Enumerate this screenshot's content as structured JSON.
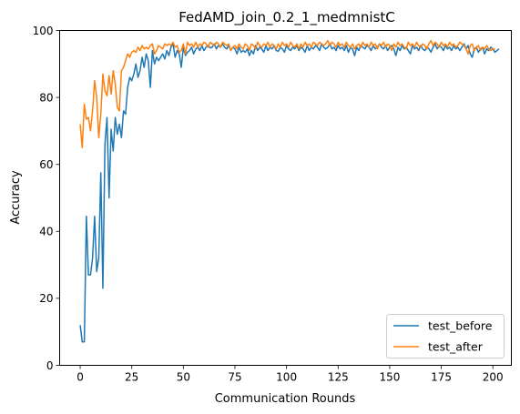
{
  "chart_data": {
    "type": "line",
    "title": "FedAMD_join_0.2_1_medmnistC",
    "xlabel": "Communication Rounds",
    "ylabel": "Accuracy",
    "xlim": [
      -9.95,
      208.95
    ],
    "ylim": [
      0,
      100
    ],
    "xticks": [
      "0",
      "25",
      "50",
      "75",
      "100",
      "125",
      "150",
      "175",
      "200"
    ],
    "yticks": [
      "0",
      "20",
      "40",
      "60",
      "80",
      "100"
    ],
    "legend": {
      "position": "lower-right"
    },
    "grid": false,
    "series": [
      {
        "name": "test_before",
        "color": "#1f77b4",
        "values": [
          12.0,
          7.0,
          7.0,
          44.5,
          27.0,
          27.0,
          32.0,
          44.5,
          28.0,
          32.0,
          57.5,
          23.0,
          66.0,
          74.0,
          50.0,
          70.5,
          64.0,
          74.0,
          69.0,
          72.0,
          68.0,
          76.0,
          75.0,
          83.0,
          86.0,
          85.0,
          87.0,
          90.0,
          86.0,
          88.0,
          92.0,
          89.0,
          93.0,
          91.0,
          83.0,
          94.0,
          90.0,
          92.0,
          91.0,
          92.0,
          93.0,
          91.5,
          94.0,
          92.5,
          95.0,
          96.0,
          92.0,
          94.0,
          93.0,
          89.0,
          95.0,
          92.5,
          93.5,
          94.0,
          95.0,
          93.0,
          94.5,
          95.0,
          94.0,
          95.5,
          94.0,
          95.0,
          95.5,
          94.8,
          95.0,
          96.0,
          94.5,
          95.5,
          95.0,
          96.0,
          95.0,
          94.5,
          95.5,
          94.0,
          95.0,
          94.5,
          93.0,
          95.0,
          93.5,
          94.0,
          93.5,
          94.5,
          92.5,
          94.0,
          93.0,
          95.5,
          94.0,
          95.0,
          94.5,
          93.5,
          95.5,
          94.0,
          95.0,
          94.5,
          95.5,
          94.0,
          93.8,
          95.0,
          94.5,
          93.5,
          95.5,
          94.5,
          94.0,
          95.0,
          94.5,
          95.5,
          94.0,
          95.0,
          94.5,
          93.5,
          95.5,
          94.0,
          95.0,
          94.5,
          95.5,
          95.0,
          94.0,
          96.0,
          95.0,
          94.5,
          95.0,
          96.0,
          94.5,
          95.0,
          94.0,
          95.5,
          94.5,
          95.0,
          94.0,
          95.5,
          93.5,
          95.0,
          94.5,
          92.5,
          95.0,
          94.0,
          95.5,
          95.0,
          94.5,
          95.5,
          95.0,
          94.0,
          95.5,
          94.5,
          95.0,
          96.0,
          95.0,
          94.5,
          95.5,
          94.0,
          95.0,
          95.5,
          94.5,
          92.5,
          95.0,
          94.0,
          95.5,
          94.5,
          95.0,
          94.0,
          93.0,
          95.5,
          94.5,
          95.0,
          94.0,
          95.5,
          94.5,
          94.0,
          95.0,
          94.5,
          93.5,
          95.0,
          96.0,
          94.5,
          95.5,
          95.0,
          94.0,
          95.5,
          94.5,
          95.0,
          94.0,
          95.5,
          94.5,
          95.0,
          94.0,
          95.0,
          96.0,
          94.5,
          95.5,
          93.0,
          92.0,
          94.5,
          95.0,
          93.5,
          94.5,
          95.0,
          93.0,
          94.5,
          94.0,
          95.0,
          94.5,
          93.5,
          94.0,
          94.5
        ]
      },
      {
        "name": "test_after",
        "color": "#ff7f0e",
        "values": [
          72.0,
          65.0,
          78.0,
          73.5,
          74.0,
          70.0,
          76.0,
          85.0,
          80.0,
          68.0,
          75.0,
          87.0,
          82.0,
          80.5,
          86.5,
          81.0,
          88.0,
          84.0,
          77.0,
          76.0,
          88.0,
          89.0,
          91.0,
          93.0,
          92.0,
          93.5,
          94.0,
          93.5,
          95.0,
          94.0,
          95.5,
          94.5,
          95.0,
          94.5,
          95.5,
          96.0,
          93.0,
          94.0,
          95.5,
          95.0,
          94.5,
          96.0,
          95.5,
          96.0,
          95.5,
          96.5,
          95.0,
          95.5,
          93.5,
          94.0,
          96.0,
          93.0,
          96.5,
          95.5,
          96.0,
          95.0,
          96.5,
          95.0,
          96.0,
          95.5,
          96.5,
          96.0,
          95.0,
          96.5,
          96.0,
          95.5,
          96.5,
          96.0,
          95.0,
          96.5,
          96.0,
          95.5,
          96.0,
          94.0,
          95.0,
          95.5,
          94.5,
          96.0,
          95.0,
          94.5,
          96.0,
          95.5,
          94.0,
          96.0,
          95.5,
          94.5,
          96.5,
          95.5,
          95.0,
          96.0,
          95.5,
          96.5,
          95.0,
          96.0,
          95.5,
          94.5,
          96.0,
          95.0,
          96.5,
          95.5,
          96.0,
          95.0,
          96.5,
          95.5,
          95.0,
          96.0,
          94.5,
          96.0,
          95.0,
          96.5,
          95.5,
          96.0,
          95.0,
          96.5,
          96.0,
          95.5,
          96.5,
          96.0,
          95.5,
          96.0,
          97.0,
          95.5,
          96.5,
          96.0,
          95.0,
          96.5,
          95.5,
          96.0,
          95.0,
          96.5,
          95.5,
          95.0,
          96.0,
          94.5,
          95.5,
          96.0,
          95.0,
          96.5,
          95.5,
          96.0,
          95.0,
          96.5,
          95.5,
          96.0,
          94.5,
          96.0,
          95.5,
          96.5,
          95.0,
          96.0,
          95.5,
          94.0,
          96.0,
          95.0,
          96.5,
          95.5,
          96.0,
          95.0,
          94.5,
          96.5,
          95.5,
          96.0,
          95.0,
          96.5,
          95.5,
          95.0,
          96.0,
          95.5,
          94.5,
          96.0,
          97.0,
          95.5,
          96.5,
          96.0,
          95.0,
          96.5,
          95.5,
          96.0,
          95.0,
          96.5,
          95.5,
          96.0,
          95.0,
          95.5,
          96.5,
          96.0,
          95.5,
          94.5,
          93.0,
          95.5,
          96.0,
          94.0,
          95.0,
          95.5,
          94.0,
          95.0,
          94.5,
          95.5,
          94.5,
          94.0,
          94.5,
          94.5
        ]
      }
    ]
  }
}
